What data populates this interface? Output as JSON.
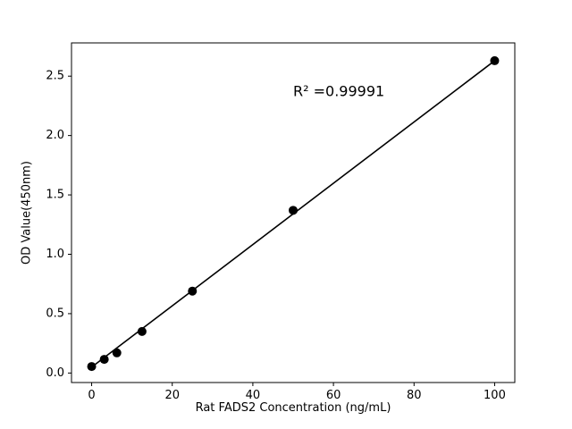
{
  "chart_data": {
    "type": "scatter",
    "title": "",
    "xlabel": "Rat FADS2 Concentration (ng/mL)",
    "ylabel": "OD Value(450nm)",
    "x": [
      0,
      3.125,
      6.25,
      12.5,
      25,
      50,
      100
    ],
    "y": [
      0.055,
      0.115,
      0.17,
      0.35,
      0.69,
      1.37,
      2.63
    ],
    "fit_line": {
      "x1": 0,
      "y1": 0.05,
      "x2": 100,
      "y2": 2.63
    },
    "xlim": [
      -5,
      105
    ],
    "ylim": [
      -0.08,
      2.78
    ],
    "xticks": {
      "values": [
        0,
        20,
        40,
        60,
        80,
        100
      ],
      "labels": [
        "0",
        "20",
        "40",
        "60",
        "80",
        "100"
      ]
    },
    "yticks": {
      "values": [
        0,
        0.5,
        1.0,
        1.5,
        2.0,
        2.5
      ],
      "labels": [
        "0.0",
        "0.5",
        "1.0",
        "1.5",
        "2.0",
        "2.5"
      ]
    },
    "annotation": {
      "text": "R² =0.99991",
      "x": 50,
      "y": 2.37
    },
    "grid": false,
    "legend": null,
    "marker": {
      "shape": "circle",
      "color": "#000000",
      "radius": 5
    },
    "line": {
      "color": "#000000",
      "width": 1.6
    },
    "background": "#ffffff"
  }
}
